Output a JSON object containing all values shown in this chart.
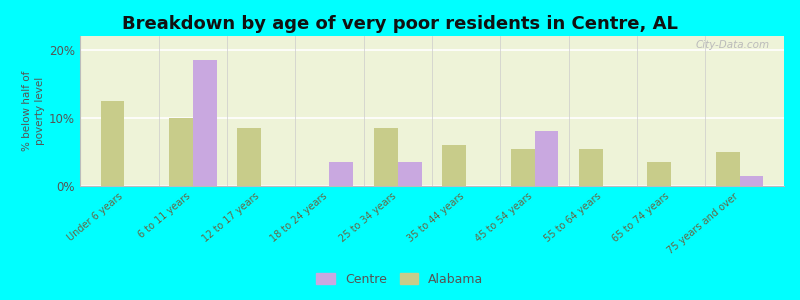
{
  "title": "Breakdown by age of very poor residents in Centre, AL",
  "categories": [
    "Under 6 years",
    "6 to 11 years",
    "12 to 17 years",
    "18 to 24 years",
    "25 to 34 years",
    "35 to 44 years",
    "45 to 54 years",
    "55 to 64 years",
    "65 to 74 years",
    "75 years and over"
  ],
  "centre_values": [
    null,
    18.5,
    null,
    3.5,
    3.5,
    null,
    8.0,
    null,
    null,
    1.5
  ],
  "alabama_values": [
    12.5,
    10.0,
    8.5,
    null,
    8.5,
    6.0,
    5.5,
    5.5,
    3.5,
    5.0
  ],
  "centre_color": "#c9a8e0",
  "alabama_color": "#c8cc8a",
  "background_color": "#00ffff",
  "plot_bg_color": "#eef3d8",
  "ylabel": "% below half of\npoverty level",
  "ylim": [
    0,
    22
  ],
  "yticks": [
    0,
    10,
    20
  ],
  "ytick_labels": [
    "0%",
    "10%",
    "20%"
  ],
  "bar_width": 0.35,
  "title_fontsize": 13,
  "label_fontsize": 7.0
}
